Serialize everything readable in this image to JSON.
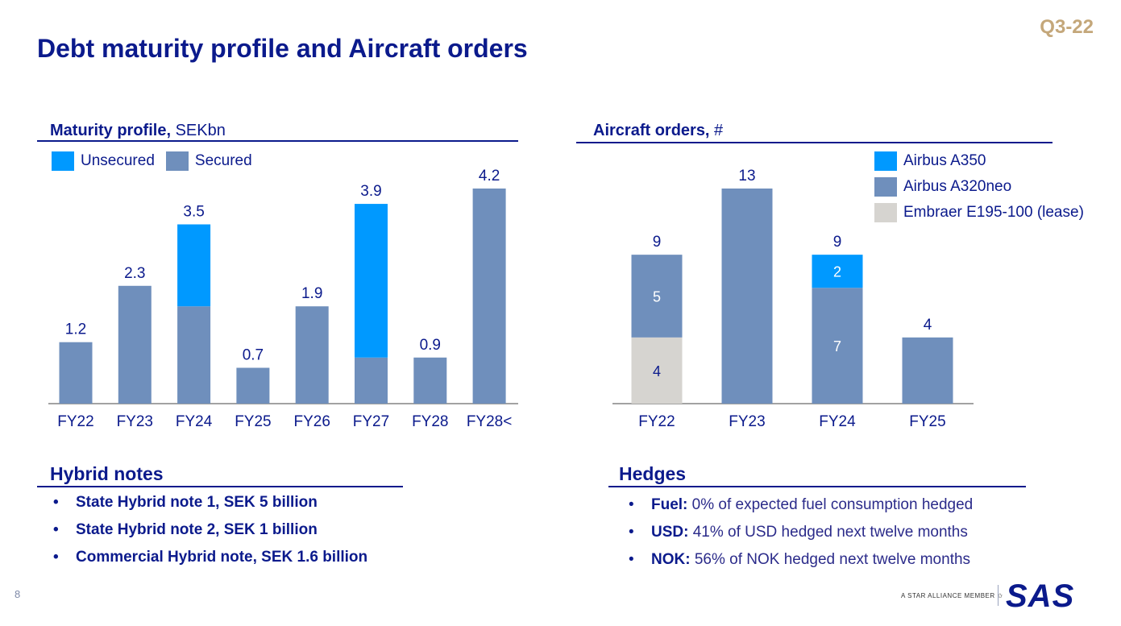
{
  "page": {
    "title": "Debt maturity profile and Aircraft orders",
    "quarter": "Q3-22",
    "page_number": "8",
    "star_alliance": "A STAR ALLIANCE MEMBER",
    "logo_text": "SAS"
  },
  "maturity": {
    "heading_bold": "Maturity profile,",
    "heading_unit": " SEKbn",
    "legend": [
      {
        "label": "Unsecured",
        "color": "#0099ff"
      },
      {
        "label": "Secured",
        "color": "#6f8fbc"
      }
    ]
  },
  "orders": {
    "heading_bold": "Aircraft orders,",
    "heading_unit": " #",
    "legend": [
      {
        "label": "Airbus A350",
        "color": "#0099ff"
      },
      {
        "label": "Airbus A320neo",
        "color": "#6f8fbc"
      },
      {
        "label": "Embraer E195-100 (lease)",
        "color": "#d6d4d0"
      }
    ]
  },
  "hybrid": {
    "heading": "Hybrid notes",
    "items": [
      "State Hybrid note 1, SEK 5 billion",
      "State Hybrid note 2, SEK 1 billion",
      "Commercial Hybrid note, SEK 1.6 billion"
    ]
  },
  "hedges": {
    "heading": "Hedges",
    "items": [
      {
        "key": "Fuel:",
        "text": " 0% of expected fuel consumption hedged"
      },
      {
        "key": "USD:",
        "text": " 41% of USD hedged next twelve months"
      },
      {
        "key": "NOK:",
        "text": " 56% of NOK hedged next twelve months"
      }
    ]
  },
  "chart_data": [
    {
      "type": "bar",
      "stacked": true,
      "title": "Maturity profile, SEKbn",
      "categories": [
        "FY22",
        "FY23",
        "FY24",
        "FY25",
        "FY26",
        "FY27",
        "FY28",
        "FY28<"
      ],
      "series": [
        {
          "name": "Secured",
          "color": "#6f8fbc",
          "values": [
            1.2,
            2.3,
            1.9,
            0.7,
            1.9,
            0.9,
            0.9,
            4.2
          ]
        },
        {
          "name": "Unsecured",
          "color": "#0099ff",
          "values": [
            0,
            0,
            1.6,
            0,
            0,
            3.0,
            0,
            0
          ]
        }
      ],
      "totals": [
        "1.2",
        "2.3",
        "3.5",
        "0.7",
        "1.9",
        "3.9",
        "0.9",
        "4.2"
      ],
      "ylim": [
        0,
        4.6
      ],
      "grid": false,
      "legend": "top-left"
    },
    {
      "type": "bar",
      "stacked": true,
      "title": "Aircraft orders, #",
      "categories": [
        "FY22",
        "FY23",
        "FY24",
        "FY25"
      ],
      "series": [
        {
          "name": "Embraer E195-100 (lease)",
          "color": "#d6d4d0",
          "values": [
            4,
            0,
            0,
            0
          ],
          "labels": [
            "4",
            "",
            "",
            ""
          ]
        },
        {
          "name": "Airbus A320neo",
          "color": "#6f8fbc",
          "values": [
            5,
            13,
            7,
            4
          ],
          "labels": [
            "5",
            "",
            "7",
            ""
          ]
        },
        {
          "name": "Airbus A350",
          "color": "#0099ff",
          "values": [
            0,
            0,
            2,
            0
          ],
          "labels": [
            "",
            "",
            "2",
            ""
          ]
        }
      ],
      "totals": [
        "9",
        "13",
        "9",
        "4"
      ],
      "ylim": [
        0,
        14.3
      ],
      "grid": false,
      "legend": "top-right"
    }
  ]
}
